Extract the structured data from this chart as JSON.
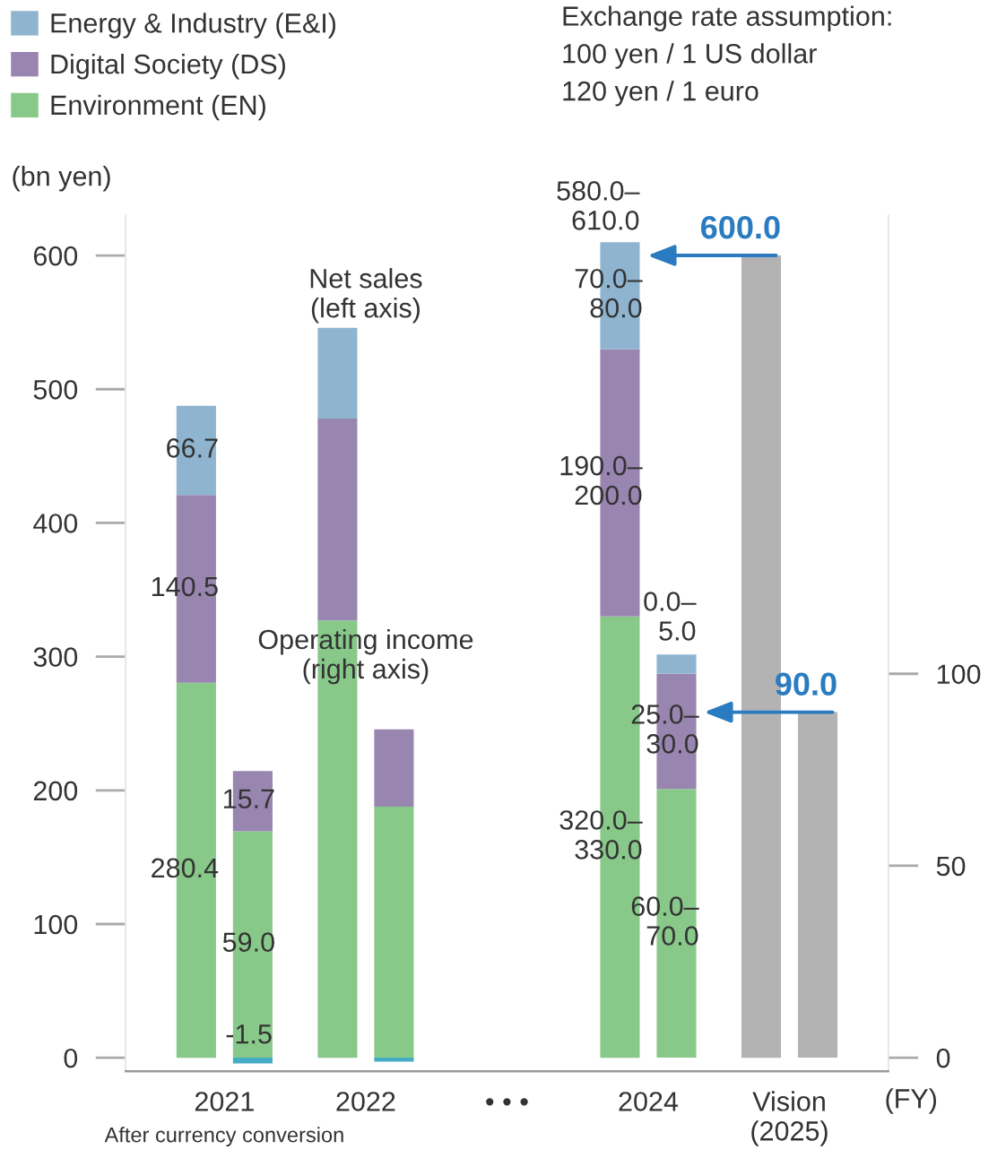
{
  "chart_data": {
    "type": "bar",
    "stacked": true,
    "categories": [
      "2021",
      "2022",
      "• • •",
      "2024",
      "Vision\n(2025)"
    ],
    "xlabel": "(FY)",
    "ylabel": "(bn yen)",
    "ylim": [
      -10,
      630
    ],
    "yticks": [
      0,
      100,
      200,
      300,
      400,
      500,
      600
    ],
    "y2lim": [
      -3.5,
      219.4
    ],
    "y2ticks": [
      0,
      50,
      100
    ],
    "grid": false,
    "legend": "top left",
    "annotations": [
      "Net sales\n(left axis)",
      "Operating income\n(right axis)",
      "After currency conversion",
      "Exchange rate assumption:\n100 yen / 1 US dollar\n120 yen / 1 euro"
    ],
    "totals": [
      null,
      null,
      null,
      "580.0–\n610.0",
      null
    ],
    "series": [
      {
        "name": "Environment (EN)",
        "color": "#88c98a",
        "values": [
          280.4,
          327,
          null,
          330,
          null
        ],
        "value_labels": [
          "280.4",
          null,
          null,
          "320.0–\n330.0",
          null
        ]
      },
      {
        "name": "Digital Society (DS)",
        "color": "#9986b0",
        "values": [
          140.5,
          151,
          null,
          200,
          null
        ],
        "value_labels": [
          "140.5",
          null,
          null,
          "190.0–\n200.0",
          null
        ]
      },
      {
        "name": "Energy & Industry (E&I)",
        "color": "#8fb4d0",
        "values": [
          66.7,
          68,
          null,
          80,
          null
        ],
        "value_labels": [
          "66.7",
          null,
          null,
          "70.0–\n80.0",
          null
        ]
      },
      {
        "axis": "y2",
        "color": "#88c98a",
        "values": [
          59.0,
          65.4,
          null,
          70,
          null
        ],
        "value_labels": [
          "59.0",
          null,
          null,
          "60.0–\n70.0",
          null
        ]
      },
      {
        "axis": "y2",
        "color": "#9986b0",
        "values": [
          15.7,
          20.1,
          null,
          30,
          null
        ],
        "value_labels": [
          "15.7",
          null,
          null,
          "25.0–\n30.0",
          null
        ]
      },
      {
        "axis": "y2",
        "color": "#8fb4d0",
        "colors": [
          "#45acc6",
          "#45acc6",
          null,
          "#8fb4d0",
          null
        ],
        "values": [
          -1.5,
          -1.0,
          null,
          5,
          null
        ],
        "value_labels": [
          "-1.5",
          null,
          null,
          "0.0–\n5.0",
          null
        ]
      },
      {
        "color": "#b3b3b3",
        "values": [
          null,
          null,
          null,
          null,
          600
        ],
        "value_labels": [
          null,
          null,
          null,
          null,
          "600.0"
        ]
      },
      {
        "axis": "y2",
        "color": "#b3b3b3",
        "values": [
          null,
          null,
          null,
          null,
          90
        ],
        "value_labels": [
          null,
          null,
          null,
          null,
          "90.0"
        ]
      }
    ]
  }
}
